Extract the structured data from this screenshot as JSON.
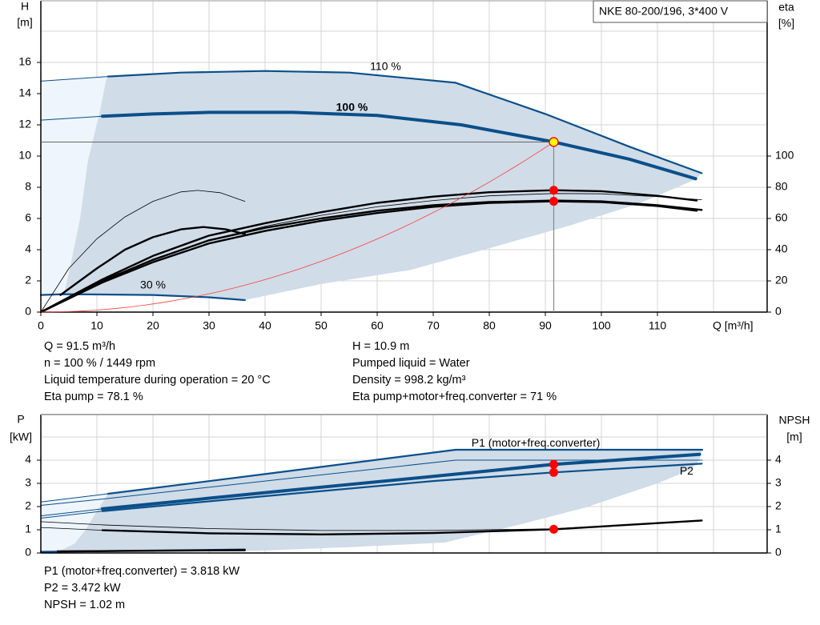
{
  "title_box": "NKE 80-200/196, 3*400 V",
  "colors": {
    "curve": "#0b4f8a",
    "range_fill": "#d0dce8",
    "range_fill_light": "#eef5fc",
    "duty_point": "#ff0000",
    "duty_point_fill": "#ffff00",
    "system_curve": "#ff3b3b",
    "grid": "#d4d4d4"
  },
  "chart_data": [
    {
      "type": "line",
      "title": "",
      "xlabel": "Q [m³/h]",
      "ylabel": "H\n[m]",
      "ylabel_left": [
        "H",
        "[m]"
      ],
      "ylabel_right": [
        "eta",
        "[%]"
      ],
      "xlim": [
        0,
        130
      ],
      "ylim": [
        0,
        18
      ],
      "y2lim": [
        0,
        180
      ],
      "xticks": [
        0,
        10,
        20,
        30,
        40,
        50,
        60,
        70,
        80,
        90,
        100,
        110
      ],
      "yticks": [
        0,
        2,
        4,
        6,
        8,
        10,
        12,
        14,
        16
      ],
      "y2ticks": [
        0,
        20,
        40,
        60,
        80,
        100
      ],
      "grid": true,
      "range_area": [
        [
          12.9,
          15.1
        ],
        [
          25,
          15.35
        ],
        [
          40,
          15.45
        ],
        [
          55,
          15.35
        ],
        [
          74,
          14.7
        ],
        [
          90,
          12.7
        ],
        [
          105,
          10.6
        ],
        [
          117.9,
          8.9
        ],
        [
          116.8,
          8.5
        ],
        [
          107,
          7.0
        ],
        [
          94.4,
          5.55
        ],
        [
          80,
          4.1
        ],
        [
          65.9,
          2.7
        ],
        [
          50,
          1.8
        ],
        [
          36.4,
          0.77
        ],
        [
          30,
          0.95
        ],
        [
          20,
          1.1
        ],
        [
          4.1,
          1.15
        ],
        [
          5,
          2.5
        ],
        [
          7,
          6
        ],
        [
          8.4,
          9.7
        ],
        [
          10.5,
          12.8
        ],
        [
          11.7,
          15.0
        ]
      ],
      "range_area_light": [
        [
          0,
          14.8
        ],
        [
          12.9,
          15.1
        ],
        [
          11.7,
          15.0
        ],
        [
          10.5,
          12.8
        ],
        [
          8.4,
          9.7
        ],
        [
          7,
          6
        ],
        [
          5,
          2.5
        ],
        [
          4.1,
          1.15
        ],
        [
          0,
          1.1
        ]
      ],
      "curve_labels": [
        {
          "text": "110 %",
          "q": 61.5,
          "h": 15.7
        },
        {
          "text": "100 %",
          "q": 55.5,
          "h": 13.1,
          "bold": true
        },
        {
          "text": "30 %",
          "q": 20,
          "h": 1.7
        }
      ],
      "series": [
        {
          "axis": "H",
          "style": "thin",
          "points": [
            [
              0,
              14.8
            ],
            [
              12,
              15.1
            ]
          ]
        },
        {
          "axis": "H",
          "style": "medium",
          "points": [
            [
              12,
              15.1
            ],
            [
              25,
              15.35
            ],
            [
              40,
              15.45
            ],
            [
              55,
              15.35
            ],
            [
              74,
              14.7
            ],
            [
              90,
              12.7
            ],
            [
              105,
              10.6
            ],
            [
              117.9,
              8.9
            ]
          ]
        },
        {
          "axis": "H",
          "style": "thin",
          "points": [
            [
              0,
              12.3
            ],
            [
              11,
              12.55
            ]
          ]
        },
        {
          "axis": "H",
          "style": "thick",
          "points": [
            [
              11,
              12.55
            ],
            [
              20,
              12.7
            ],
            [
              30,
              12.8
            ],
            [
              45,
              12.8
            ],
            [
              60,
              12.6
            ],
            [
              75,
              12.0
            ],
            [
              91.5,
              10.9
            ],
            [
              105,
              9.8
            ],
            [
              116.8,
              8.55
            ]
          ]
        },
        {
          "axis": "H",
          "style": "medium",
          "points": [
            [
              0,
              1.1
            ],
            [
              4,
              1.15
            ],
            [
              20,
              1.1
            ],
            [
              30,
              0.95
            ],
            [
              36.4,
              0.77
            ]
          ]
        },
        {
          "axis": "eta",
          "style": "thin-black",
          "points": [
            [
              0,
              0
            ],
            [
              5,
              28
            ],
            [
              10,
              47
            ],
            [
              15,
              61
            ],
            [
              20,
              71
            ],
            [
              25,
              77
            ],
            [
              28,
              78
            ],
            [
              32,
              76.5
            ],
            [
              36.4,
              71
            ]
          ]
        },
        {
          "axis": "eta",
          "style": "thick-black",
          "points": [
            [
              3.5,
              11
            ],
            [
              10,
              28
            ],
            [
              15,
              40
            ],
            [
              20,
              48
            ],
            [
              25,
              53
            ],
            [
              29,
              54.5
            ],
            [
              33,
              53
            ],
            [
              36.4,
              50
            ]
          ]
        },
        {
          "axis": "eta",
          "style": "thick-black",
          "points": [
            [
              0,
              0
            ],
            [
              11,
              21
            ],
            [
              20,
              36
            ],
            [
              30,
              49
            ],
            [
              40,
              57
            ],
            [
              50,
              64
            ],
            [
              60,
              70
            ],
            [
              70,
              74
            ],
            [
              80,
              76.8
            ],
            [
              91.5,
              78.1
            ],
            [
              100,
              77.5
            ],
            [
              110,
              74.5
            ],
            [
              117,
              71.5
            ]
          ]
        },
        {
          "axis": "eta",
          "style": "thin-black",
          "points": [
            [
              0,
              0
            ],
            [
              11,
              20
            ],
            [
              20,
              34
            ],
            [
              30,
              46
            ],
            [
              40,
              55
            ],
            [
              50,
              62
            ],
            [
              60,
              67.5
            ],
            [
              70,
              71.5
            ],
            [
              80,
              74.5
            ],
            [
              91.5,
              76
            ],
            [
              100,
              75.8
            ],
            [
              110,
              74
            ],
            [
              117.9,
              72
            ]
          ]
        },
        {
          "axis": "eta",
          "style": "thick-black",
          "points": [
            [
              0,
              0
            ],
            [
              11,
              20
            ],
            [
              20,
              33.5
            ],
            [
              30,
              46
            ],
            [
              40,
              54
            ],
            [
              50,
              60
            ],
            [
              60,
              65
            ],
            [
              70,
              68.5
            ],
            [
              80,
              70.5
            ],
            [
              91.5,
              71.5
            ],
            [
              100,
              71
            ],
            [
              110,
              68.5
            ],
            [
              117.9,
              65.5
            ]
          ]
        },
        {
          "axis": "eta",
          "style": "thick-black",
          "points": [
            [
              0,
              0
            ],
            [
              11,
              19
            ],
            [
              20,
              32
            ],
            [
              30,
              44
            ],
            [
              40,
              52
            ],
            [
              50,
              58.5
            ],
            [
              60,
              63.5
            ],
            [
              70,
              67.5
            ],
            [
              80,
              70
            ],
            [
              91.5,
              71
            ],
            [
              100,
              70.5
            ],
            [
              110,
              68
            ],
            [
              117,
              65
            ]
          ]
        }
      ],
      "system_curve": {
        "q_duty": 91.5,
        "h_duty": 10.9
      },
      "duty_point": {
        "q": 91.5,
        "h": 10.9,
        "eta_pump": 78.1,
        "eta_total": 71
      }
    },
    {
      "type": "line",
      "title": "",
      "ylabel_left": [
        "P",
        "[kW]"
      ],
      "ylabel_right": [
        "NPSH",
        "[m]"
      ],
      "xlim": [
        0,
        130
      ],
      "ylim": [
        0,
        6
      ],
      "yticks": [
        0,
        1,
        2,
        3,
        4
      ],
      "y2ticks": [
        0,
        1,
        2,
        3,
        4
      ],
      "grid": true,
      "range_area": [
        [
          12,
          2.55
        ],
        [
          40,
          3.4
        ],
        [
          74,
          4.45
        ],
        [
          118,
          4.45
        ],
        [
          117.5,
          4.0
        ],
        [
          116,
          3.6
        ],
        [
          110,
          3.0
        ],
        [
          97,
          1.95
        ],
        [
          85,
          1.2
        ],
        [
          72,
          0.45
        ],
        [
          55,
          0.25
        ],
        [
          36.5,
          0.08
        ],
        [
          3,
          0.05
        ],
        [
          6,
          0.4
        ],
        [
          8,
          1.0
        ],
        [
          10,
          1.8
        ],
        [
          12,
          2.55
        ]
      ],
      "range_area_light": [
        [
          0,
          2.2
        ],
        [
          12,
          2.55
        ],
        [
          10,
          1.8
        ],
        [
          8,
          1.0
        ],
        [
          6,
          0.4
        ],
        [
          3,
          0.05
        ],
        [
          0,
          0.05
        ]
      ],
      "curve_labels": [
        {
          "text": "P1 (motor+freq.converter)",
          "q": 88.3,
          "p": 4.72
        },
        {
          "text": "P2",
          "q": 115.2,
          "p": 3.5
        }
      ],
      "series": [
        {
          "axis": "P",
          "style": "thin",
          "points": [
            [
              0,
              2.2
            ],
            [
              12,
              2.55
            ]
          ]
        },
        {
          "axis": "P",
          "style": "medium",
          "points": [
            [
              12,
              2.55
            ],
            [
              40,
              3.4
            ],
            [
              74,
              4.45
            ],
            [
              118,
              4.45
            ]
          ]
        },
        {
          "axis": "P",
          "style": "thin",
          "points": [
            [
              0,
              2.05
            ],
            [
              12,
              2.35
            ],
            [
              40,
              3.1
            ],
            [
              74,
              4.0
            ],
            [
              118,
              4.0
            ]
          ]
        },
        {
          "axis": "P",
          "style": "thin",
          "points": [
            [
              0,
              1.6
            ],
            [
              11,
              1.9
            ]
          ]
        },
        {
          "axis": "P",
          "style": "thick",
          "points": [
            [
              11,
              1.9
            ],
            [
              40,
              2.6
            ],
            [
              70,
              3.3
            ],
            [
              91.5,
              3.818
            ],
            [
              117.5,
              4.25
            ]
          ]
        },
        {
          "axis": "P",
          "style": "thin",
          "points": [
            [
              0,
              1.5
            ],
            [
              11,
              1.8
            ]
          ]
        },
        {
          "axis": "P",
          "style": "medium",
          "points": [
            [
              11,
              1.8
            ],
            [
              40,
              2.45
            ],
            [
              70,
              3.1
            ],
            [
              91.5,
              3.472
            ],
            [
              117.9,
              3.85
            ]
          ]
        },
        {
          "axis": "P",
          "style": "medium",
          "points": [
            [
              0,
              0.05
            ],
            [
              36.4,
              0.15
            ]
          ]
        },
        {
          "axis": "NPSH",
          "style": "thin-black",
          "points": [
            [
              0,
              1.35
            ],
            [
              12,
              1.2
            ],
            [
              30,
              1.05
            ],
            [
              50,
              0.97
            ],
            [
              70,
              0.97
            ],
            [
              91.5,
              1.04
            ],
            [
              117.9,
              1.4
            ]
          ]
        },
        {
          "axis": "NPSH",
          "style": "thin-black",
          "points": [
            [
              0,
              1.1
            ],
            [
              11,
              0.98
            ]
          ]
        },
        {
          "axis": "NPSH",
          "style": "thick-black",
          "points": [
            [
              11,
              0.98
            ],
            [
              30,
              0.85
            ],
            [
              50,
              0.8
            ],
            [
              70,
              0.86
            ],
            [
              91.5,
              1.02
            ],
            [
              117.9,
              1.4
            ]
          ]
        },
        {
          "axis": "NPSH",
          "style": "thick-black",
          "points": [
            [
              3,
              0.07
            ],
            [
              36.4,
              0.12
            ]
          ]
        }
      ],
      "duty_point": {
        "q": 91.5,
        "p1": 3.818,
        "p2": 3.472,
        "npsh": 1.02
      }
    }
  ],
  "info_top": {
    "left": [
      "Q = 91.5 m³/h",
      "n = 100 % / 1449 rpm",
      "Liquid temperature during operation = 20 °C",
      "Eta pump = 78.1 %"
    ],
    "right": [
      "H = 10.9 m",
      "Pumped liquid = Water",
      "Density = 998.2 kg/m³",
      "Eta pump+motor+freq.converter = 71 %"
    ]
  },
  "info_bottom": [
    "P1 (motor+freq.converter) = 3.818 kW",
    "P2 = 3.472 kW",
    "NPSH = 1.02 m"
  ]
}
